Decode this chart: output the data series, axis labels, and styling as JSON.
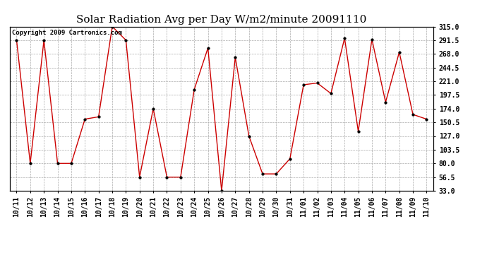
{
  "title": "Solar Radiation Avg per Day W/m2/minute 20091110",
  "copyright": "Copyright 2009 Cartronics.com",
  "x_labels": [
    "10/11",
    "10/12",
    "10/13",
    "10/14",
    "10/15",
    "10/16",
    "10/17",
    "10/18",
    "10/19",
    "10/20",
    "10/21",
    "10/22",
    "10/23",
    "10/24",
    "10/25",
    "10/26",
    "10/27",
    "10/28",
    "10/29",
    "10/30",
    "10/31",
    "11/01",
    "11/02",
    "11/03",
    "11/04",
    "11/05",
    "11/06",
    "11/07",
    "11/08",
    "11/09",
    "11/10"
  ],
  "y_values": [
    291.5,
    80.0,
    291.5,
    80.0,
    80.0,
    156.0,
    160.0,
    315.0,
    291.5,
    56.5,
    174.0,
    56.5,
    56.5,
    207.0,
    278.0,
    33.0,
    262.0,
    127.0,
    62.0,
    62.0,
    88.0,
    215.0,
    218.0,
    200.0,
    295.0,
    135.0,
    293.0,
    185.0,
    271.0,
    164.0,
    156.0
  ],
  "y_ticks": [
    33.0,
    56.5,
    80.0,
    103.5,
    127.0,
    150.5,
    174.0,
    197.5,
    221.0,
    244.5,
    268.0,
    291.5,
    315.0
  ],
  "line_color": "#cc0000",
  "marker_color": "#cc0000",
  "bg_color": "#ffffff",
  "plot_bg_color": "#ffffff",
  "grid_color": "#aaaaaa",
  "title_fontsize": 11,
  "copyright_fontsize": 6.5,
  "tick_fontsize": 7,
  "ylim": [
    33.0,
    315.0
  ],
  "figwidth": 6.9,
  "figheight": 3.75,
  "dpi": 100
}
